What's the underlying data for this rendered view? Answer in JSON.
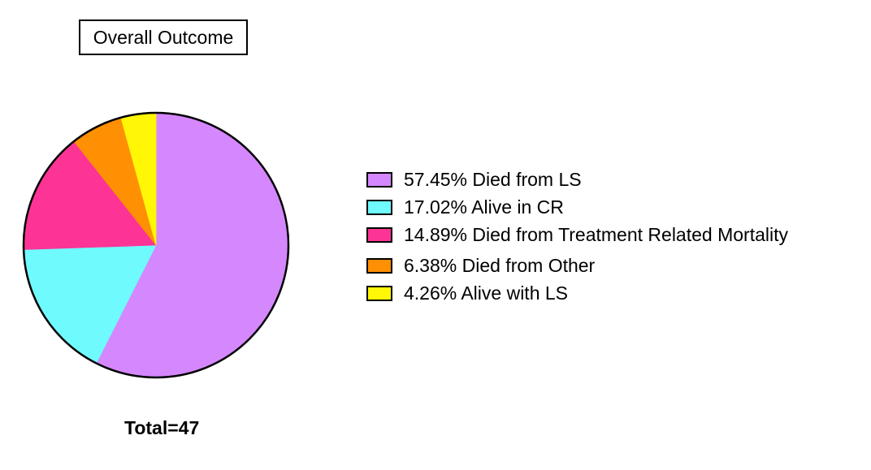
{
  "chart_data": {
    "type": "pie",
    "title": "Overall Outcome",
    "slices": [
      {
        "label": "57.45%  Died from LS",
        "value": 57.45,
        "color": "#D587FE"
      },
      {
        "label": "17.02%  Alive in CR",
        "value": 17.02,
        "color": "#6FFBFE"
      },
      {
        "label": "14.89%  Died from Treatment Related Mortality",
        "value": 14.89,
        "color": "#FD3495"
      },
      {
        "label": "6.38%  Died from Other",
        "value": 6.38,
        "color": "#FF8F03"
      },
      {
        "label": "4.26%  Alive with LS",
        "value": 4.26,
        "color": "#FFF705"
      }
    ],
    "start": "12 o'clock",
    "direction": "clockwise",
    "legend_position": "right",
    "footer": "Total=47"
  }
}
